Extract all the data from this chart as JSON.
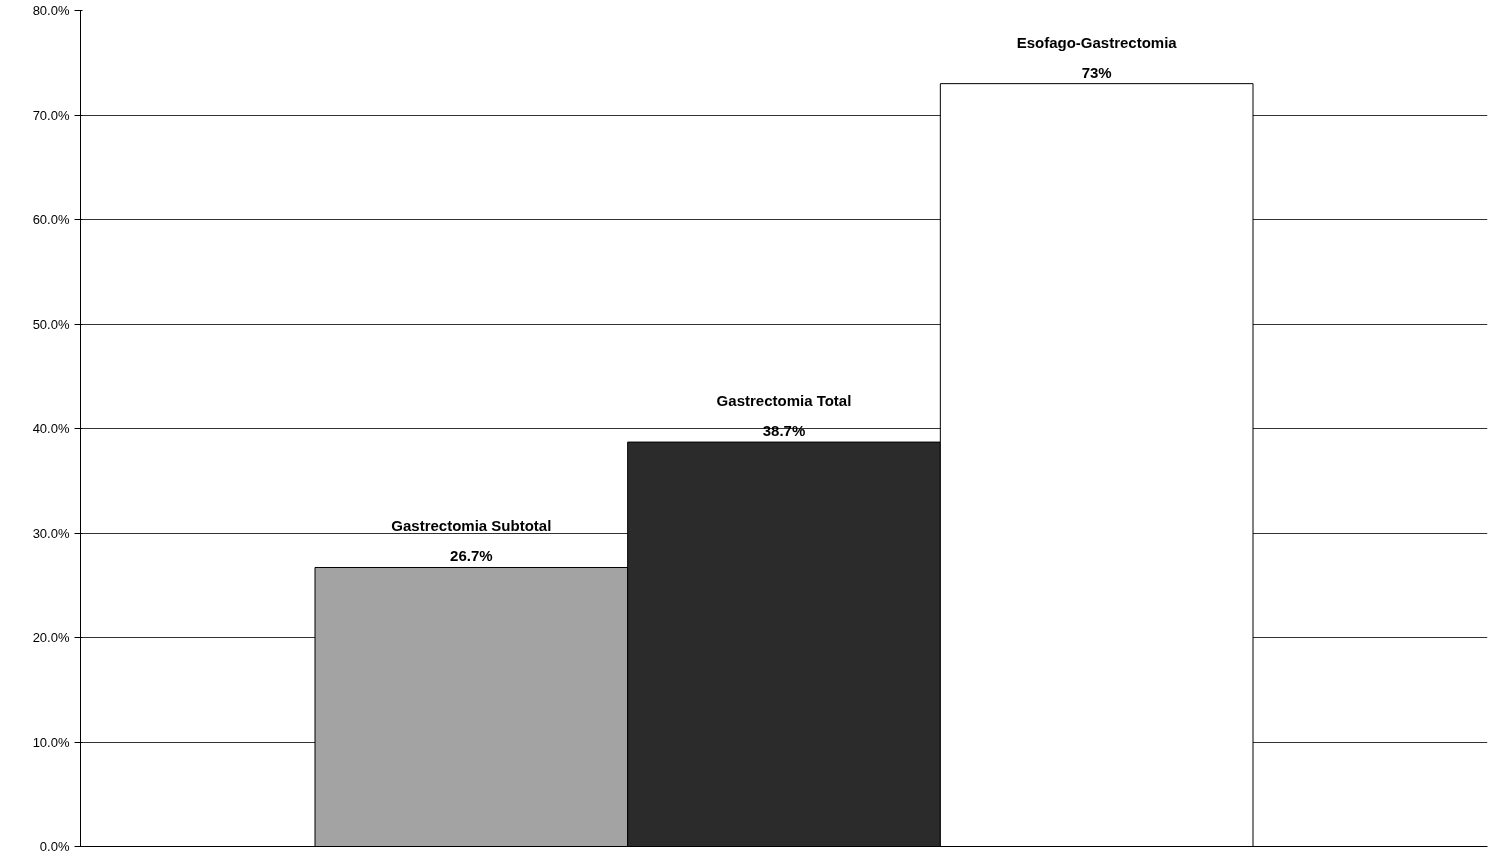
{
  "chart_data": {
    "type": "bar",
    "categories": [
      "Gastrectomia Subtotal",
      "Gastrectomia Total",
      "Esofago-Gastrectomia"
    ],
    "values": [
      26.7,
      38.7,
      73
    ],
    "colors": [
      "#a3a3a3",
      "#2b2b2b",
      "#ffffff"
    ],
    "value_labels": [
      "26.7%",
      "38.7%",
      "73%"
    ],
    "ylim": [
      0,
      80
    ],
    "yticks": [
      {
        "value": 0,
        "label": "0.0%"
      },
      {
        "value": 10,
        "label": "10.0%"
      },
      {
        "value": 20,
        "label": "20.0%"
      },
      {
        "value": 30,
        "label": "30.0%"
      },
      {
        "value": 40,
        "label": "40.0%"
      },
      {
        "value": 50,
        "label": "50.0%"
      },
      {
        "value": 60,
        "label": "60.0%"
      },
      {
        "value": 70,
        "label": "70.0%"
      },
      {
        "value": 80,
        "label": "80.0%"
      }
    ],
    "grid": "y",
    "tick_labels": "y"
  }
}
